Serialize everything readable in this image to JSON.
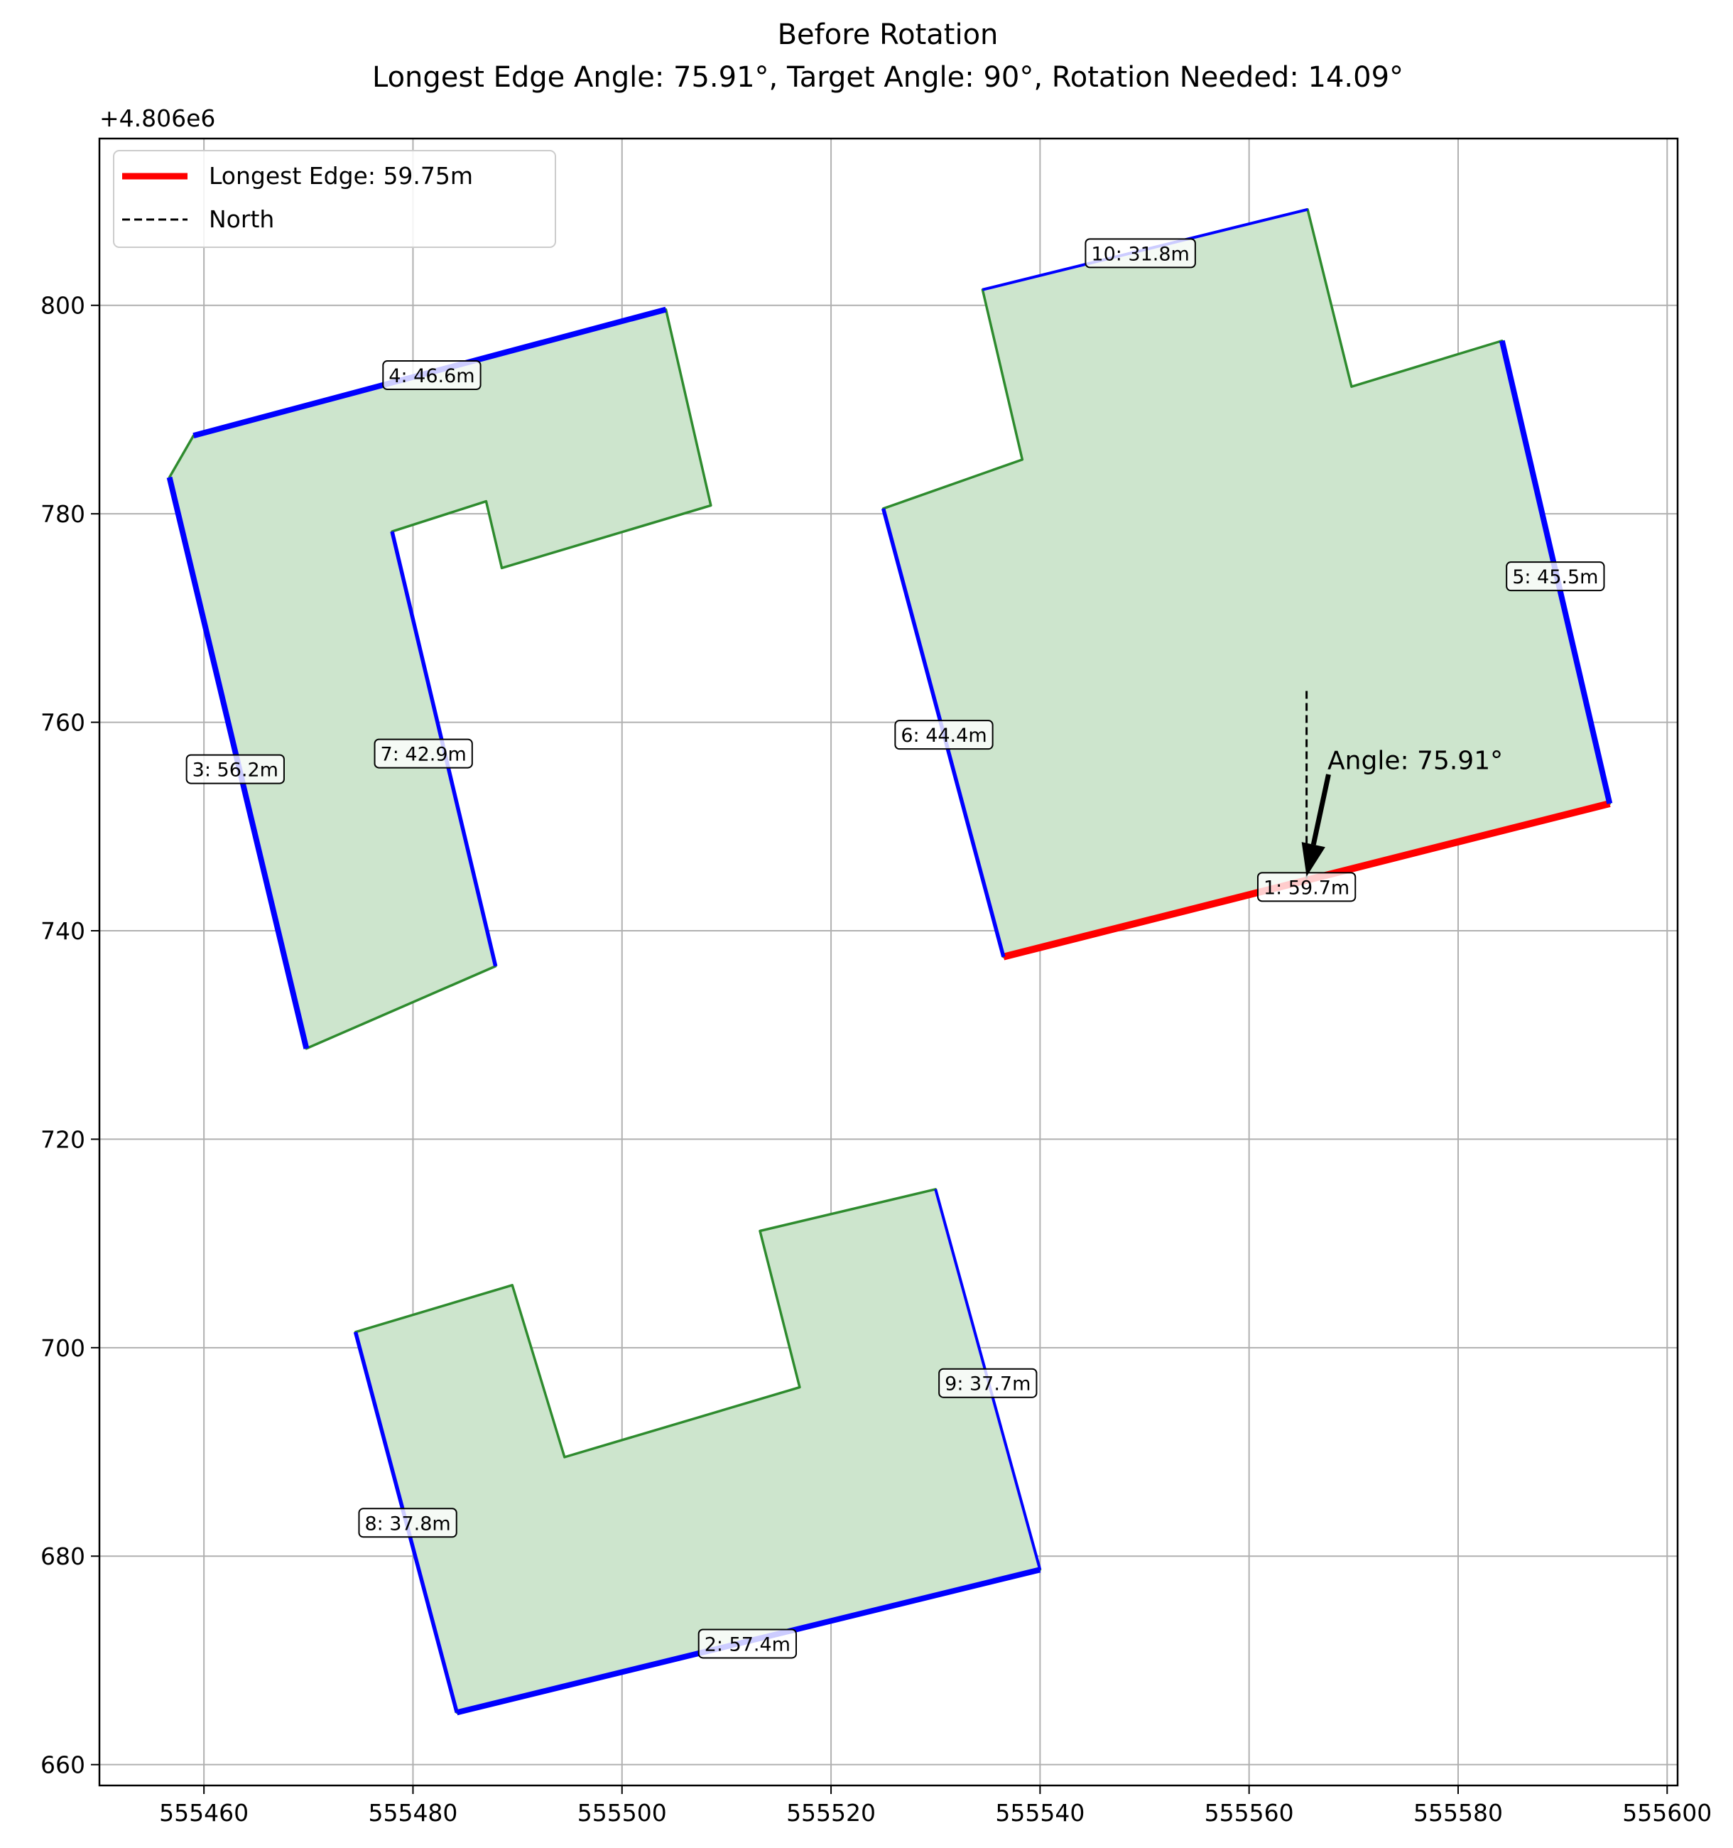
{
  "chart_data": {
    "type": "line",
    "title": "Before Rotation",
    "subtitle": "Longest Edge Angle: 75.91°, Target Angle: 90°, Rotation Needed: 14.09°",
    "xlabel": "",
    "ylabel": "",
    "y_offset_label": "+4.806e6",
    "y_offset": 4806000,
    "xlim": [
      555450,
      555601
    ],
    "ylim": [
      658,
      816
    ],
    "x_ticks": [
      555460,
      555480,
      555500,
      555520,
      555540,
      555560,
      555580,
      555600
    ],
    "y_ticks": [
      660,
      680,
      700,
      720,
      740,
      760,
      780,
      800
    ],
    "grid": true,
    "legend_position": "top-left",
    "legend": [
      {
        "label": "Longest Edge: 59.75m",
        "style": "solid",
        "color": "#ff0000"
      },
      {
        "label": "North",
        "style": "dashed",
        "color": "#000000"
      }
    ],
    "colors": {
      "fill": "#cde5cd",
      "outline": "#2e8b2e",
      "edge": "#0000ff",
      "longest_edge": "#ff0000",
      "north": "#000000"
    },
    "polygons": [
      {
        "outline": [
          [
            555456.7,
            783.5
          ],
          [
            555459.0,
            787.5
          ],
          [
            555504.2,
            799.6
          ],
          [
            555508.5,
            780.8
          ],
          [
            555488.5,
            774.8
          ],
          [
            555487.0,
            781.2
          ],
          [
            555478.0,
            778.3
          ],
          [
            555487.9,
            736.6
          ],
          [
            555469.8,
            728.7
          ],
          [
            555456.7,
            783.5
          ]
        ],
        "edges": [
          {
            "label": "3: 56.2m",
            "from": [
              555456.7,
              783.5
            ],
            "to": [
              555469.8,
              728.7
            ],
            "label_at": [
              555463.0,
              755.5
            ],
            "width": "thick"
          },
          {
            "label": "4: 46.6m",
            "from": [
              555459.0,
              787.5
            ],
            "to": [
              555504.2,
              799.6
            ],
            "label_at": [
              555481.8,
              793.3
            ],
            "width": "thick"
          },
          {
            "label": "7: 42.9m",
            "from": [
              555478.0,
              778.3
            ],
            "to": [
              555487.9,
              736.6
            ],
            "label_at": [
              555481.0,
              757.0
            ],
            "width": "medium"
          }
        ]
      },
      {
        "outline": [
          [
            555525.0,
            780.5
          ],
          [
            555538.3,
            785.2
          ],
          [
            555534.5,
            801.5
          ],
          [
            555565.6,
            809.2
          ],
          [
            555569.8,
            792.2
          ],
          [
            555584.2,
            796.6
          ],
          [
            555594.5,
            752.2
          ],
          [
            555536.5,
            737.5
          ],
          [
            555525.0,
            780.5
          ]
        ],
        "edges": [
          {
            "label": "1: 59.7m",
            "from": [
              555536.5,
              737.5
            ],
            "to": [
              555594.5,
              752.2
            ],
            "label_at": [
              555565.5,
              744.2
            ],
            "width": "thick",
            "longest": true
          },
          {
            "label": "5: 45.5m",
            "from": [
              555584.2,
              796.6
            ],
            "to": [
              555594.5,
              752.2
            ],
            "label_at": [
              555589.3,
              774.0
            ],
            "width": "thick"
          },
          {
            "label": "6: 44.4m",
            "from": [
              555525.0,
              780.5
            ],
            "to": [
              555536.5,
              737.5
            ],
            "label_at": [
              555530.8,
              758.8
            ],
            "width": "medium"
          },
          {
            "label": "10: 31.8m",
            "from": [
              555534.5,
              801.5
            ],
            "to": [
              555565.6,
              809.2
            ],
            "label_at": [
              555549.6,
              805.0
            ],
            "width": "thin"
          }
        ]
      },
      {
        "outline": [
          [
            555474.5,
            701.5
          ],
          [
            555489.5,
            706.0
          ],
          [
            555494.5,
            689.5
          ],
          [
            555517.0,
            696.2
          ],
          [
            555513.2,
            711.2
          ],
          [
            555530.0,
            715.2
          ],
          [
            555540.0,
            678.7
          ],
          [
            555484.2,
            665.0
          ],
          [
            555474.5,
            701.5
          ]
        ],
        "edges": [
          {
            "label": "2: 57.4m",
            "from": [
              555484.2,
              665.0
            ],
            "to": [
              555540.0,
              678.7
            ],
            "label_at": [
              555512.0,
              671.6
            ],
            "width": "thick"
          },
          {
            "label": "8: 37.8m",
            "from": [
              555474.5,
              701.5
            ],
            "to": [
              555484.2,
              665.0
            ],
            "label_at": [
              555479.5,
              683.2
            ],
            "width": "medium"
          },
          {
            "label": "9: 37.7m",
            "from": [
              555530.0,
              715.2
            ],
            "to": [
              555540.0,
              678.7
            ],
            "label_at": [
              555535.0,
              696.6
            ],
            "width": "thin"
          }
        ]
      }
    ],
    "north_line": {
      "x": 555565.5,
      "y_from": 745.0,
      "y_to": 763.0
    },
    "annotation": {
      "text": "Angle: 75.91°",
      "text_at": [
        555567.5,
        755.5
      ],
      "arrow_from": [
        555567.6,
        755.0
      ],
      "arrow_to": [
        555565.5,
        745.2
      ]
    }
  }
}
